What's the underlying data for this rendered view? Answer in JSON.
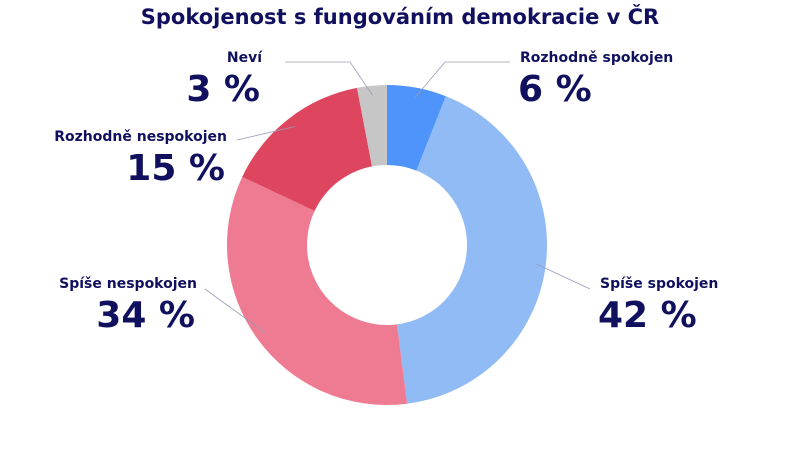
{
  "chart_data": {
    "type": "donut",
    "title": "Spokojenost s fungováním demokracie v ČR",
    "categories": [
      "Rozhodně spokojen",
      "Spíše spokojen",
      "Spíše nespokojen",
      "Rozhodně nespokojen",
      "Neví"
    ],
    "values": [
      6,
      42,
      34,
      15,
      3
    ],
    "value_labels": [
      "6 %",
      "42 %",
      "34 %",
      "15 %",
      "3 %"
    ],
    "colors": [
      "#4e94fb",
      "#91bbf5",
      "#ee7b92",
      "#de4660",
      "#c6c6c6"
    ]
  }
}
